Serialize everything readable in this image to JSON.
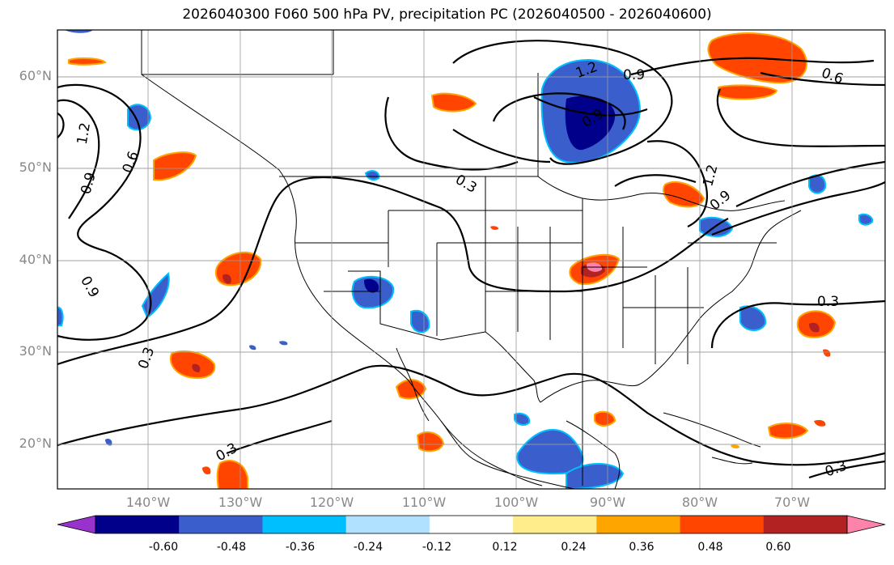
{
  "title": "2026040300 F060 500 hPa PV, precipitation PC (2026040500 - 2026040600)",
  "lat_labels": [
    "60°N",
    "50°N",
    "40°N",
    "30°N",
    "20°N"
  ],
  "lon_labels": [
    "140°W",
    "130°W",
    "120°W",
    "110°W",
    "100°W",
    "90°W",
    "80°W",
    "70°W"
  ],
  "contour_labels": [
    "1.2",
    "0.9",
    "0.6",
    "0.9",
    "0.9",
    "0.3",
    "0.3",
    "1.2",
    "0.9",
    "0.6",
    "0.3",
    "0.3",
    "0.3",
    "1.2",
    "0.9"
  ],
  "colorbar": {
    "labels": [
      "-0.60",
      "-0.48",
      "-0.36",
      "-0.24",
      "-0.12",
      "0.12",
      "0.24",
      "0.36",
      "0.48",
      "0.60"
    ],
    "colors": [
      "#9932cc",
      "#00008b",
      "#3a5fcd",
      "#00bfff",
      "#b0e2ff",
      "#ffffff",
      "#ffec8b",
      "#ffa500",
      "#ff4500",
      "#b22222",
      "#ff82ab"
    ]
  }
}
